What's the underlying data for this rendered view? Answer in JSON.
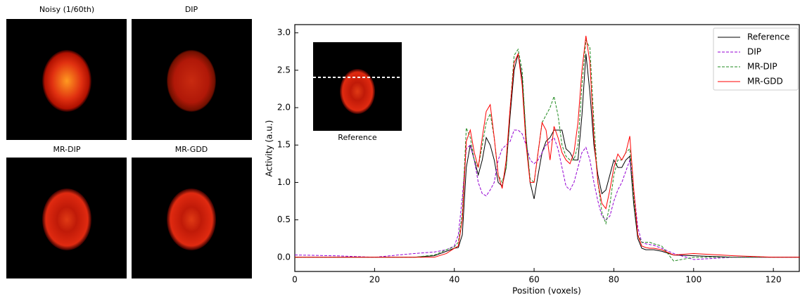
{
  "image_panels": [
    {
      "title": "Noisy (1/60th)"
    },
    {
      "title": "DIP"
    },
    {
      "title": "MR-DIP"
    },
    {
      "title": "MR-GDD"
    }
  ],
  "chart_data": {
    "type": "line",
    "xlabel": "Position (voxels)",
    "ylabel": "Activity (a.u.)",
    "inset_label": "Reference",
    "x": [
      0,
      10,
      20,
      30,
      35,
      38,
      40,
      41,
      42,
      43,
      44,
      45,
      46,
      47,
      48,
      49,
      50,
      51,
      52,
      53,
      54,
      55,
      56,
      57,
      58,
      59,
      60,
      61,
      62,
      63,
      64,
      65,
      66,
      67,
      68,
      69,
      70,
      71,
      72,
      73,
      74,
      75,
      76,
      77,
      78,
      79,
      80,
      81,
      82,
      83,
      84,
      85,
      86,
      87,
      88,
      89,
      90,
      92,
      95,
      100,
      110,
      120,
      127
    ],
    "series": [
      {
        "name": "Reference",
        "color": "#000000",
        "line_style": "solid",
        "values": [
          0.0,
          0.0,
          0.0,
          0.0,
          0.02,
          0.08,
          0.12,
          0.13,
          0.3,
          1.2,
          1.5,
          1.3,
          1.1,
          1.3,
          1.6,
          1.5,
          1.3,
          1.0,
          0.95,
          1.2,
          1.9,
          2.5,
          2.72,
          2.4,
          1.6,
          1.0,
          0.78,
          1.1,
          1.4,
          1.55,
          1.6,
          1.7,
          1.7,
          1.7,
          1.45,
          1.4,
          1.3,
          1.3,
          1.9,
          2.72,
          2.2,
          1.5,
          1.1,
          0.85,
          0.9,
          1.1,
          1.3,
          1.2,
          1.2,
          1.3,
          1.35,
          0.7,
          0.25,
          0.12,
          0.1,
          0.1,
          0.1,
          0.08,
          0.03,
          0.02,
          0.0,
          0.0,
          0.0
        ]
      },
      {
        "name": "DIP",
        "color": "#9400d3",
        "line_style": "dashed",
        "values": [
          0.03,
          0.02,
          0.0,
          0.05,
          0.07,
          0.1,
          0.15,
          0.3,
          0.8,
          1.45,
          1.5,
          1.3,
          1.0,
          0.85,
          0.82,
          0.9,
          1.0,
          1.3,
          1.45,
          1.5,
          1.55,
          1.7,
          1.7,
          1.65,
          1.5,
          1.3,
          1.25,
          1.3,
          1.4,
          1.5,
          1.55,
          1.6,
          1.45,
          1.2,
          0.95,
          0.9,
          1.0,
          1.2,
          1.4,
          1.47,
          1.3,
          1.0,
          0.75,
          0.55,
          0.5,
          0.55,
          0.75,
          0.9,
          1.0,
          1.15,
          1.3,
          0.9,
          0.4,
          0.2,
          0.18,
          0.17,
          0.16,
          0.12,
          0.05,
          -0.03,
          0.0,
          0.0,
          0.0
        ]
      },
      {
        "name": "MR-DIP",
        "color": "#228b22",
        "line_style": "dashed",
        "values": [
          0.0,
          0.0,
          0.0,
          0.0,
          0.03,
          0.1,
          0.14,
          0.2,
          0.6,
          1.73,
          1.6,
          1.3,
          1.2,
          1.5,
          1.8,
          1.92,
          1.6,
          1.1,
          1.0,
          1.2,
          2.0,
          2.7,
          2.78,
          2.5,
          1.6,
          1.05,
          1.0,
          1.4,
          1.8,
          1.9,
          2.0,
          2.15,
          1.9,
          1.5,
          1.35,
          1.3,
          1.3,
          1.5,
          2.3,
          2.9,
          2.8,
          1.8,
          1.0,
          0.6,
          0.45,
          0.7,
          1.1,
          1.3,
          1.3,
          1.4,
          1.45,
          0.8,
          0.3,
          0.2,
          0.2,
          0.2,
          0.18,
          0.15,
          -0.05,
          0.0,
          0.0,
          0.0,
          0.0
        ]
      },
      {
        "name": "MR-GDD",
        "color": "#ff0000",
        "line_style": "solid",
        "values": [
          0.0,
          0.0,
          0.0,
          0.0,
          0.0,
          0.05,
          0.12,
          0.15,
          0.5,
          1.55,
          1.7,
          1.4,
          1.2,
          1.6,
          1.95,
          2.04,
          1.6,
          1.1,
          0.92,
          1.3,
          2.0,
          2.6,
          2.72,
          2.3,
          1.5,
          1.0,
          1.0,
          1.4,
          1.8,
          1.7,
          1.3,
          1.75,
          1.6,
          1.4,
          1.3,
          1.25,
          1.4,
          1.8,
          2.5,
          2.96,
          2.6,
          1.6,
          1.0,
          0.72,
          0.65,
          0.9,
          1.2,
          1.38,
          1.3,
          1.4,
          1.62,
          0.9,
          0.3,
          0.15,
          0.13,
          0.12,
          0.12,
          0.1,
          0.03,
          0.05,
          0.02,
          0.0,
          0.0
        ]
      }
    ],
    "xlim": [
      0,
      126.5
    ],
    "ylim": [
      -0.19,
      3.11
    ],
    "xticks": [
      0,
      20,
      40,
      60,
      80,
      100,
      120
    ],
    "yticks": [
      {
        "value": 0,
        "label": "0.0"
      },
      {
        "value": 0.5,
        "label": "0.5"
      },
      {
        "value": 1,
        "label": "1.0"
      },
      {
        "value": 1.5,
        "label": "1.5"
      },
      {
        "value": 2,
        "label": "2.0"
      },
      {
        "value": 2.5,
        "label": "2.5"
      },
      {
        "value": 3,
        "label": "3.0"
      }
    ],
    "grid": false,
    "legend": "upper right"
  }
}
